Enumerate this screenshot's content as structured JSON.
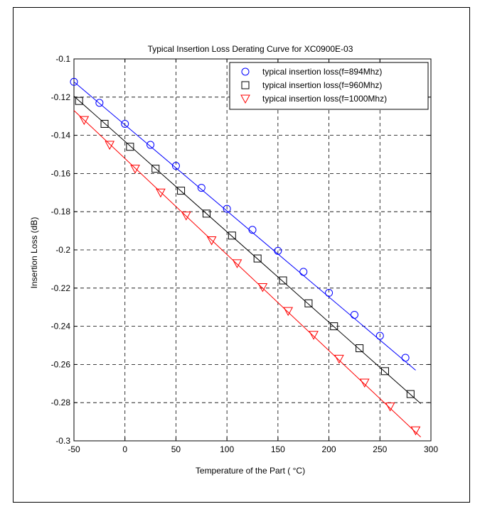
{
  "chart_data": {
    "type": "line",
    "title": "Typical Insertion Loss Derating Curve for XC0900E-03",
    "xlabel": "Temperature of the Part ( °C)",
    "ylabel": "Insertion Loss (dB)",
    "xlim": [
      -50,
      300
    ],
    "ylim": [
      -0.3,
      -0.1
    ],
    "xticks": [
      -50,
      0,
      50,
      100,
      150,
      200,
      250,
      300
    ],
    "xtick_labels": [
      "-50",
      "0",
      "50",
      "100",
      "150",
      "200",
      "250",
      "300"
    ],
    "yticks": [
      -0.3,
      -0.28,
      -0.26,
      -0.24,
      -0.22,
      -0.2,
      -0.18,
      -0.16,
      -0.14,
      -0.12,
      -0.1
    ],
    "ytick_labels": [
      "-0.3",
      "-0.28",
      "-0.26",
      "-0.24",
      "-0.22",
      "-0.2",
      "-0.18",
      "-0.16",
      "-0.14",
      "-0.12",
      "-0.1"
    ],
    "grid": true,
    "legend_position": "top-right",
    "series": [
      {
        "name": "typical insertion loss(f=894Mhz)",
        "color": "#0000ff",
        "marker": "circle",
        "line_x": [
          -50,
          285
        ],
        "line_y": [
          -0.112,
          -0.263
        ],
        "x": [
          -50,
          -25,
          0,
          25,
          50,
          75,
          100,
          125,
          150,
          175,
          200,
          225,
          250,
          275
        ],
        "y": [
          -0.112,
          -0.123,
          -0.134,
          -0.145,
          -0.156,
          -0.1675,
          -0.1785,
          -0.1895,
          -0.2005,
          -0.2115,
          -0.2225,
          -0.234,
          -0.245,
          -0.2565
        ]
      },
      {
        "name": "typical insertion loss(f=960Mhz)",
        "color": "#000000",
        "marker": "square",
        "line_x": [
          -50,
          290
        ],
        "line_y": [
          -0.1195,
          -0.2805
        ],
        "x": [
          -45,
          -20,
          5,
          30,
          55,
          80,
          105,
          130,
          155,
          180,
          205,
          230,
          255,
          280
        ],
        "y": [
          -0.122,
          -0.134,
          -0.146,
          -0.1575,
          -0.169,
          -0.181,
          -0.1925,
          -0.2045,
          -0.216,
          -0.228,
          -0.24,
          -0.2515,
          -0.2635,
          -0.2755
        ]
      },
      {
        "name": "typical insertion loss(f=1000Mhz)",
        "color": "#ff0000",
        "marker": "triangle-down",
        "line_x": [
          -50,
          290
        ],
        "line_y": [
          -0.127,
          -0.298
        ],
        "x": [
          -40,
          -15,
          10,
          35,
          60,
          85,
          110,
          135,
          160,
          185,
          210,
          235,
          260,
          285
        ],
        "y": [
          -0.132,
          -0.145,
          -0.1575,
          -0.17,
          -0.182,
          -0.195,
          -0.207,
          -0.2195,
          -0.232,
          -0.2445,
          -0.257,
          -0.2695,
          -0.282,
          -0.2945
        ]
      }
    ]
  }
}
